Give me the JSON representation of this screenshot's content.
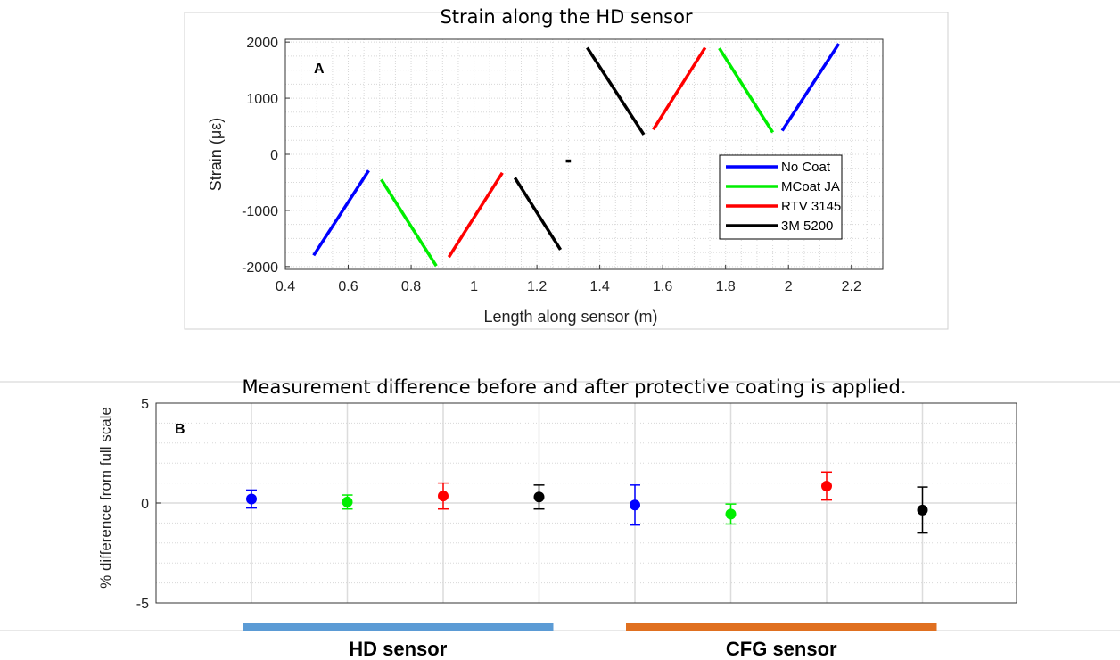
{
  "chart_data": [
    {
      "type": "line",
      "panel_label": "A",
      "title": "Strain along the HD sensor",
      "xlabel": "Length along sensor (m)",
      "ylabel": "Strain (με)",
      "xlim": [
        0.4,
        2.3
      ],
      "ylim": [
        -2050,
        2050
      ],
      "xticks": [
        "0.4",
        "0.6",
        "0.8",
        "1",
        "1.2",
        "1.4",
        "1.6",
        "1.8",
        "2",
        "2.2"
      ],
      "yticks": [
        "-2000",
        "-1000",
        "0",
        "1000",
        "2000"
      ],
      "grid": "dotted minor",
      "legend_position": "lower-right",
      "series": [
        {
          "name": "No Coat",
          "color": "#0000ff",
          "segments": [
            [
              [
                0.49,
                -1800
              ],
              [
                0.665,
                -290
              ]
            ],
            [
              [
                1.98,
                420
              ],
              [
                2.16,
                1970
              ]
            ]
          ]
        },
        {
          "name": "MCoat JA",
          "color": "#00ee00",
          "segments": [
            [
              [
                0.705,
                -450
              ],
              [
                0.88,
                -1990
              ]
            ],
            [
              [
                1.78,
                1890
              ],
              [
                1.95,
                390
              ]
            ]
          ]
        },
        {
          "name": "RTV 3145",
          "color": "#ff0000",
          "segments": [
            [
              [
                0.92,
                -1830
              ],
              [
                1.09,
                -330
              ]
            ],
            [
              [
                1.57,
                440
              ],
              [
                1.735,
                1900
              ]
            ]
          ]
        },
        {
          "name": "3M 5200",
          "color": "#000000",
          "segments": [
            [
              [
                1.13,
                -420
              ],
              [
                1.275,
                -1700
              ]
            ],
            [
              [
                1.36,
                1900
              ],
              [
                1.54,
                350
              ]
            ],
            [
              [
                1.292,
                -120
              ],
              [
                1.308,
                -120
              ]
            ]
          ]
        }
      ]
    },
    {
      "type": "scatter",
      "panel_label": "B",
      "title": "Measurement difference before and after protective coating is applied.",
      "xlabel": "",
      "ylabel": "% difference from full scale",
      "ylim": [
        -5,
        5
      ],
      "yticks": [
        "-5",
        "0",
        "5"
      ],
      "grid": "on",
      "points": [
        {
          "x": 1,
          "y": 0.2,
          "err": 0.45,
          "color": "#0000ff"
        },
        {
          "x": 2,
          "y": 0.05,
          "err": 0.35,
          "color": "#00ee00"
        },
        {
          "x": 3,
          "y": 0.35,
          "err": 0.65,
          "color": "#ff0000"
        },
        {
          "x": 4,
          "y": 0.3,
          "err": 0.6,
          "color": "#000000"
        },
        {
          "x": 5,
          "y": -0.1,
          "err": 1.0,
          "color": "#0000ff"
        },
        {
          "x": 6,
          "y": -0.55,
          "err": 0.5,
          "color": "#00ee00"
        },
        {
          "x": 7,
          "y": 0.85,
          "err": 0.7,
          "color": "#ff0000"
        },
        {
          "x": 8,
          "y": -0.35,
          "err": 1.15,
          "color": "#000000"
        }
      ],
      "groups": [
        {
          "label": "HD sensor",
          "color": "#5b9bd5",
          "x_from": 1,
          "x_to": 4
        },
        {
          "label": "CFG sensor",
          "color": "#e07020",
          "x_from": 5,
          "x_to": 8
        }
      ]
    }
  ]
}
